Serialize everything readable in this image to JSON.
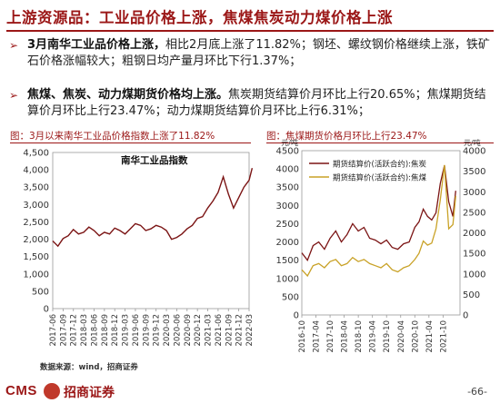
{
  "header": {
    "title": "上游资源品：工业品价格上涨，焦煤焦炭动力煤价格上涨"
  },
  "bullets": [
    {
      "bold": "3月南华工业品价格上涨，",
      "text": "相比2月底上涨了11.82%；钢坯、螺纹钢价格继续上涨，铁矿石价格涨幅较大；粗钢日均产量月环比下行1.37%；"
    },
    {
      "bold": "焦煤、焦炭、动力煤期货价格均上涨。",
      "text": "焦炭期货结算价月环比上行20.65%；焦煤期货结算价月环比上行23.47%；动力煤期货结算价月环比上行6.31%；"
    }
  ],
  "charts": {
    "left_caption": "图：3月以来南华工业品价格指数上涨了11.82%",
    "right_caption": "图：焦煤期货价格月环比上行23.47%",
    "right_unit_left": "元/吨",
    "right_unit_right": "元/吨"
  },
  "footer": {
    "source": "数据来源：wind，招商证券",
    "logo_text": "CMS",
    "logo_name": "招商证券",
    "page_number": "-66-"
  },
  "chart_data": [
    {
      "type": "line",
      "title": "南华工业品指数",
      "x_ticks": [
        "2017-06",
        "2017-09",
        "2017-12",
        "2018-03",
        "2018-06",
        "2018-09",
        "2018-12",
        "2019-03",
        "2019-06",
        "2019-09",
        "2019-12",
        "2020-03",
        "2020-06",
        "2020-09",
        "2020-12",
        "2021-03",
        "2021-06",
        "2021-09",
        "2021-12",
        "2022-03"
      ],
      "ylim": [
        0,
        4500
      ],
      "y_ticks": [
        0,
        500,
        1000,
        1500,
        2000,
        2500,
        3000,
        3500,
        4000,
        4500
      ],
      "series": [
        {
          "color": "#7b1414",
          "x": [
            0,
            0.5,
            1,
            1.5,
            2,
            2.5,
            3,
            3.5,
            4,
            4.5,
            5,
            5.5,
            6,
            6.5,
            7,
            7.5,
            8,
            8.5,
            9,
            9.5,
            10,
            10.5,
            11,
            11.5,
            12,
            12.5,
            13,
            13.5,
            14,
            14.5,
            15,
            15.5,
            16,
            16.5,
            17,
            17.5,
            18,
            18.5,
            19,
            19.3
          ],
          "values": [
            1950,
            1800,
            2020,
            2100,
            2280,
            2150,
            2200,
            2350,
            2250,
            2100,
            2200,
            2150,
            2320,
            2250,
            2150,
            2300,
            2450,
            2400,
            2250,
            2300,
            2400,
            2350,
            2250,
            2000,
            2050,
            2150,
            2300,
            2400,
            2600,
            2650,
            2900,
            3100,
            3350,
            3800,
            3300,
            2900,
            3200,
            3500,
            3700,
            4050
          ]
        }
      ]
    },
    {
      "type": "line",
      "x_ticks": [
        "2016-10",
        "2017-04",
        "2017-10",
        "2018-04",
        "2018-10",
        "2019-04",
        "2019-10",
        "2020-04",
        "2020-10",
        "2021-04",
        "2021-10"
      ],
      "ylim_left": [
        0,
        4500
      ],
      "y_ticks_left": [
        0,
        500,
        1000,
        1500,
        2000,
        2500,
        3000,
        3500,
        4000,
        4500
      ],
      "ylim_right": [
        0,
        4000
      ],
      "y_ticks_right": [
        0,
        500,
        1000,
        1500,
        2000,
        2500,
        3000,
        3500,
        4000
      ],
      "series": [
        {
          "name": "期货结算价(活跃合约):焦炭",
          "axis": "left",
          "color": "#7b1414",
          "x": [
            0,
            0.4,
            0.8,
            1.2,
            1.6,
            2,
            2.4,
            2.8,
            3.2,
            3.6,
            4,
            4.4,
            4.8,
            5.2,
            5.6,
            6,
            6.4,
            6.8,
            7.2,
            7.6,
            8,
            8.3,
            8.6,
            8.9,
            9.2,
            9.5,
            9.8,
            10.1,
            10.4,
            10.7,
            10.9
          ],
          "values": [
            1700,
            1500,
            1900,
            2000,
            1800,
            2100,
            2300,
            2000,
            2200,
            2500,
            2300,
            2400,
            2100,
            2050,
            1950,
            2050,
            1850,
            1800,
            1950,
            2000,
            2400,
            2550,
            2900,
            2700,
            2600,
            2800,
            3600,
            4100,
            3100,
            2700,
            3400
          ]
        },
        {
          "name": "期货结算价(活跃合约):焦煤",
          "axis": "right",
          "color": "#c9a227",
          "x": [
            0,
            0.4,
            0.8,
            1.2,
            1.6,
            2,
            2.4,
            2.8,
            3.2,
            3.6,
            4,
            4.4,
            4.8,
            5.2,
            5.6,
            6,
            6.4,
            6.8,
            7.2,
            7.6,
            8,
            8.3,
            8.6,
            8.9,
            9.2,
            9.5,
            9.8,
            10.1,
            10.4,
            10.7,
            10.9
          ],
          "values": [
            1100,
            950,
            1200,
            1250,
            1150,
            1300,
            1350,
            1200,
            1250,
            1400,
            1300,
            1350,
            1250,
            1200,
            1150,
            1250,
            1100,
            1050,
            1150,
            1200,
            1350,
            1500,
            1800,
            1700,
            1750,
            2100,
            2800,
            3650,
            2100,
            2200,
            2900
          ]
        }
      ],
      "legend_position": "top-left"
    }
  ]
}
